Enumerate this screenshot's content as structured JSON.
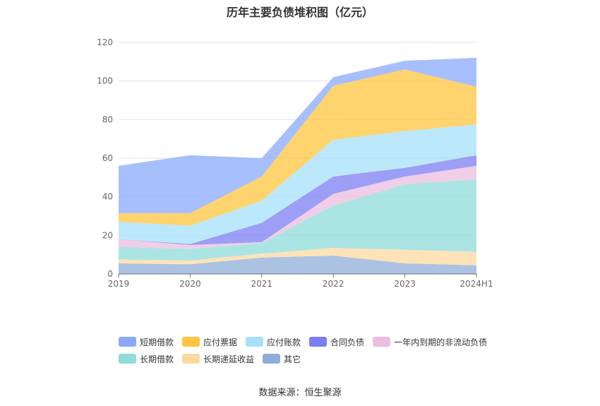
{
  "chart_data": {
    "type": "area",
    "stacked": true,
    "title": "历年主要负债堆积图（亿元）",
    "categories": [
      "2019",
      "2020",
      "2021",
      "2022",
      "2023",
      "2024H1"
    ],
    "ylim": [
      0,
      120
    ],
    "yticks": [
      0,
      20,
      40,
      60,
      80,
      100,
      120
    ],
    "grid": true,
    "legend_position": "bottom",
    "series": [
      {
        "name": "其它",
        "color": "#8fadd9",
        "values": [
          5.5,
          5.0,
          8.5,
          9.5,
          5.5,
          4.5
        ]
      },
      {
        "name": "长期递延收益",
        "color": "#fdd9a0",
        "values": [
          2.0,
          2.0,
          2.0,
          4.0,
          7.0,
          7.0
        ]
      },
      {
        "name": "长期借款",
        "color": "#8fdcd9",
        "values": [
          6.5,
          6.0,
          5.5,
          22.0,
          34.0,
          37.5
        ]
      },
      {
        "name": "一年内到期的非流动负债",
        "color": "#ebbde0",
        "values": [
          4.0,
          2.0,
          0.5,
          6.0,
          4.0,
          7.0
        ]
      },
      {
        "name": "合同负债",
        "color": "#7b7ff2",
        "values": [
          0.0,
          0.5,
          10.0,
          9.0,
          4.5,
          5.5
        ]
      },
      {
        "name": "应付账款",
        "color": "#a6e0fa",
        "values": [
          9.0,
          9.5,
          11.5,
          19.0,
          19.0,
          16.0
        ]
      },
      {
        "name": "应付票据",
        "color": "#ffc53d",
        "values": [
          4.5,
          6.5,
          12.5,
          28.0,
          32.0,
          19.5
        ]
      },
      {
        "name": "短期借款",
        "color": "#8aa9fb",
        "values": [
          24.5,
          30.0,
          9.5,
          4.5,
          4.5,
          15.0
        ]
      }
    ]
  },
  "legend": {
    "row1": [
      "短期借款",
      "应付票据",
      "应付账款",
      "合同负债",
      "一年内到期的非流动负债"
    ],
    "row2": [
      "长期借款",
      "长期递延收益",
      "其它"
    ]
  },
  "source": "数据来源：恒生聚源"
}
